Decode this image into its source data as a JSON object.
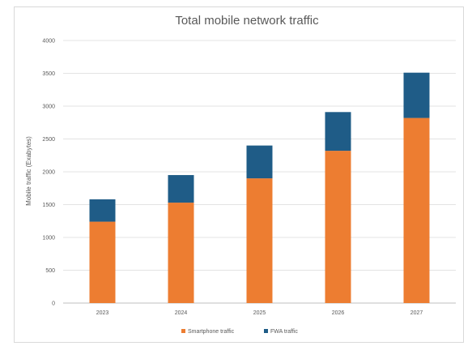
{
  "chart_data": {
    "type": "bar",
    "stacked": true,
    "title": "Total mobile network traffic",
    "xlabel": "",
    "ylabel": "Mobile traffic (Exabytes)",
    "categories": [
      "2023",
      "2024",
      "2025",
      "2026",
      "2027"
    ],
    "series": [
      {
        "name": "Smartphone traffic",
        "values": [
          1240,
          1530,
          1900,
          2320,
          2820
        ],
        "color": "#ed7d31"
      },
      {
        "name": "FWA traffic",
        "values": [
          340,
          420,
          500,
          590,
          690
        ],
        "color": "#1f5c87"
      }
    ],
    "ylim": [
      0,
      4000
    ],
    "yticks": [
      "0",
      "500",
      "1000",
      "1500",
      "2000",
      "2500",
      "3000",
      "3500",
      "4000"
    ],
    "grid": true,
    "legend_position": "bottom"
  }
}
